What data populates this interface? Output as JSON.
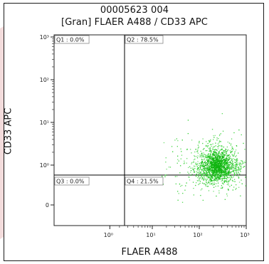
{
  "sample_id": "00005623 004",
  "chart_data": {
    "type": "scatter",
    "title": "[Gran] FLAER A488 / CD33 APC",
    "xlabel": "FLAER A488",
    "ylabel": "CD33 APC",
    "x_scale": "biexponential",
    "y_scale": "biexponential",
    "x_ticks": [
      "10⁰",
      "10¹",
      "10²",
      "10³"
    ],
    "y_ticks": [
      "0",
      "10⁰",
      "10¹",
      "10²",
      "10³"
    ],
    "quadrants": [
      {
        "label": "Q1 : 0.0%",
        "name": "Q1",
        "percent": 0.0
      },
      {
        "label": "Q2 : 78.5%",
        "name": "Q2",
        "percent": 78.5
      },
      {
        "label": "Q3 : 0.0%",
        "name": "Q3",
        "percent": 0.0
      },
      {
        "label": "Q4 : 21.5%",
        "name": "Q4",
        "percent": 21.5
      }
    ],
    "gate": {
      "x": 3,
      "y": 1
    },
    "population": {
      "center_x": 250,
      "center_y": 0.7,
      "color": "#22cc22"
    }
  },
  "colors": {
    "frame": "#1a1a1a",
    "dots": "#22cc22",
    "gate_line": "#000000"
  }
}
